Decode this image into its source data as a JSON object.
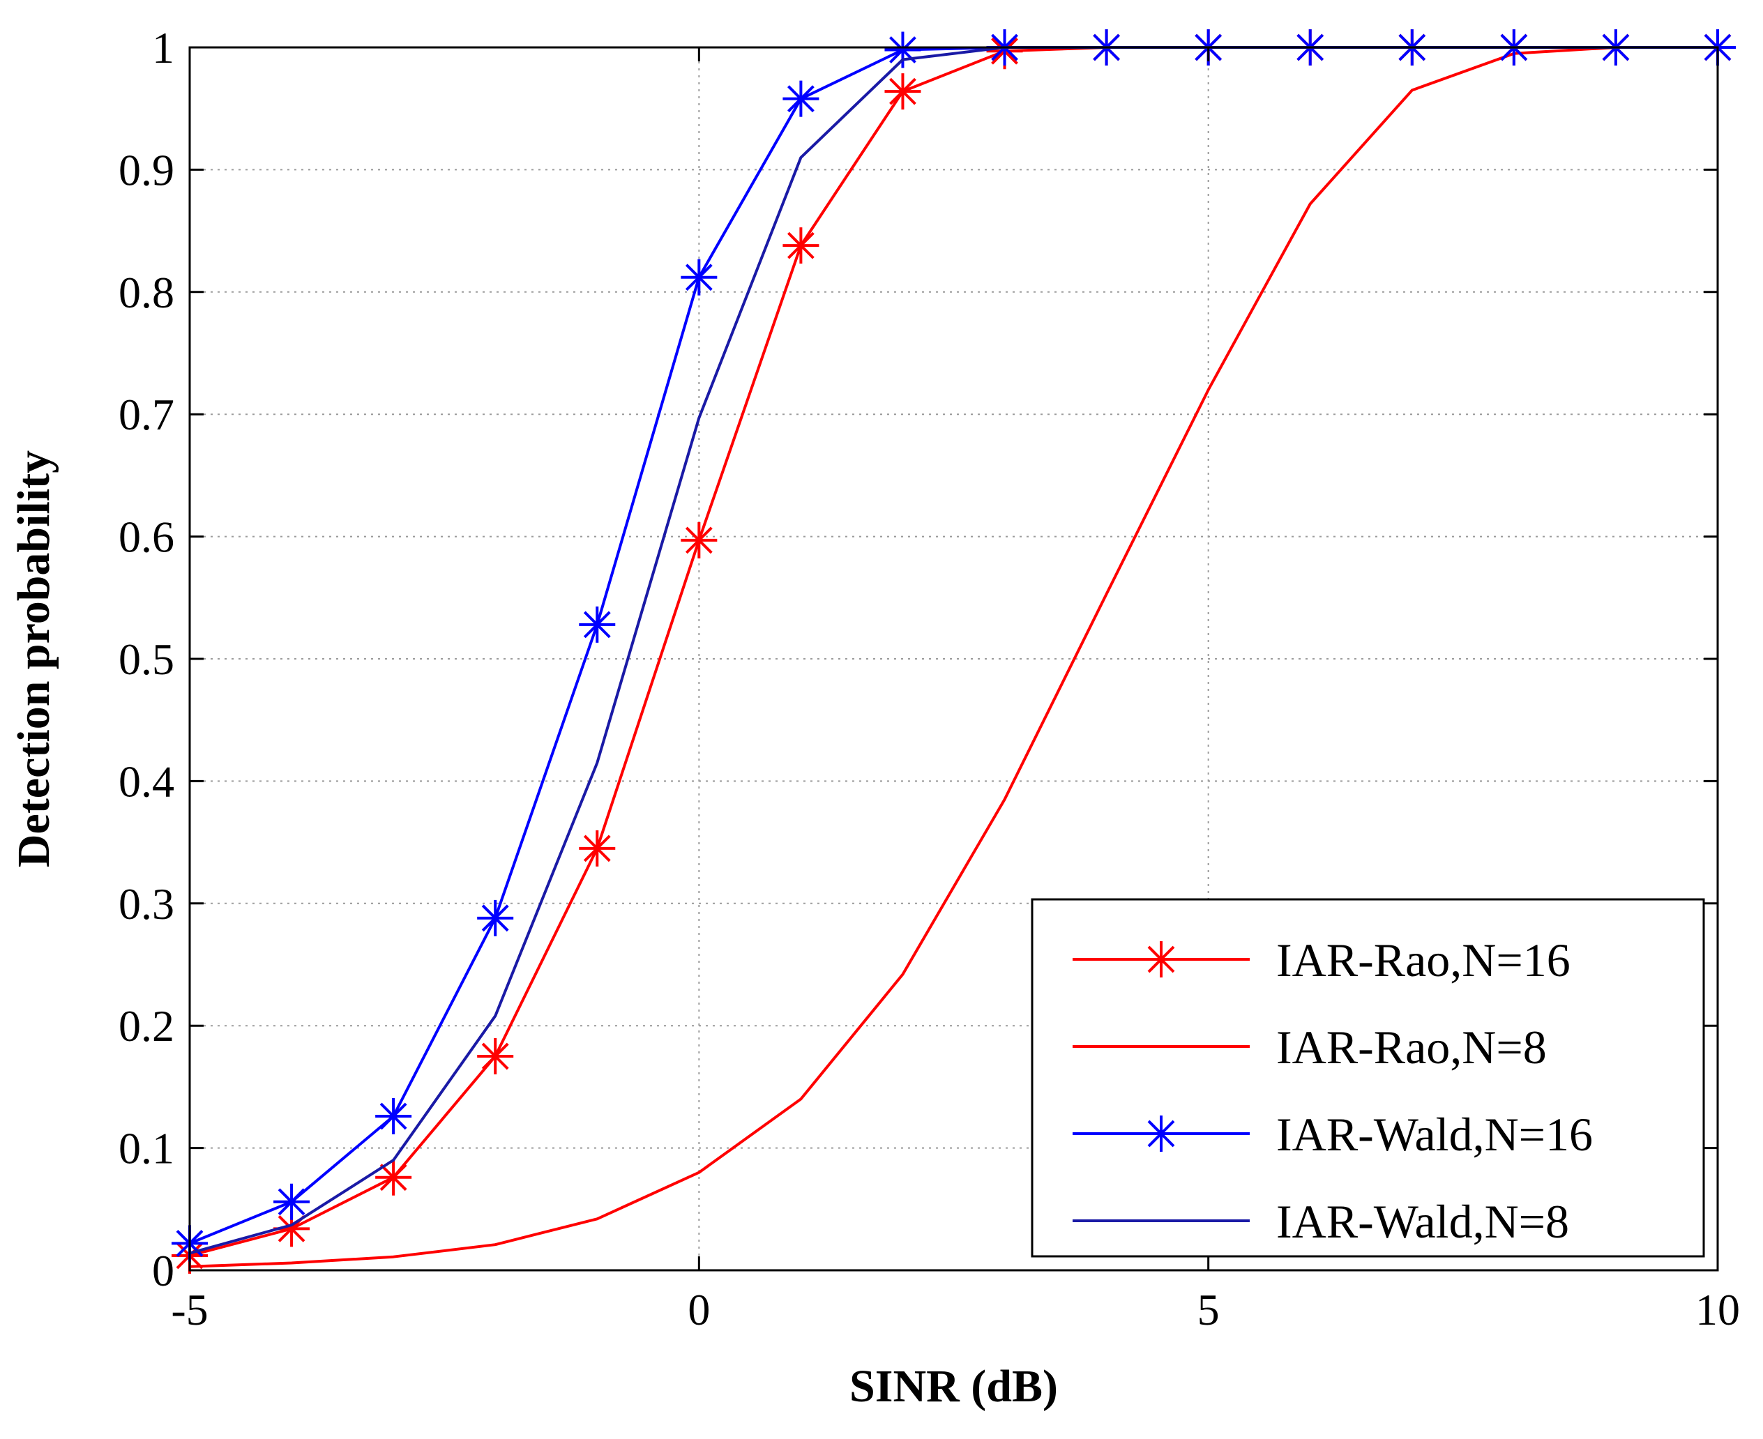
{
  "chart_data": {
    "type": "line",
    "title": "",
    "xlabel": "SINR (dB)",
    "ylabel": "Detection probability",
    "xlim": [
      -5,
      10
    ],
    "ylim": [
      0,
      1
    ],
    "grid": true,
    "x_ticks": [
      -5,
      0,
      5,
      10
    ],
    "x_tick_labels": [
      "-5",
      "0",
      "5",
      "10"
    ],
    "y_ticks": [
      0,
      0.1,
      0.2,
      0.3,
      0.4,
      0.5,
      0.6,
      0.7,
      0.8,
      0.9,
      1
    ],
    "y_tick_labels": [
      "0",
      "0.1",
      "0.2",
      "0.3",
      "0.4",
      "0.5",
      "0.6",
      "0.7",
      "0.8",
      "0.9",
      "1"
    ],
    "legend_position": "bottom-right",
    "x": [
      -5,
      -4,
      -3,
      -2,
      -1,
      0,
      1,
      2,
      3,
      4,
      5,
      6,
      7,
      8,
      9,
      10
    ],
    "series": [
      {
        "name": "IAR-Rao,N=16",
        "color": "#ff0000",
        "marker": "asterisk",
        "values": [
          0.012,
          0.034,
          0.076,
          0.175,
          0.345,
          0.597,
          0.838,
          0.964,
          0.997,
          1.0,
          1.0,
          1.0,
          1.0,
          1.0,
          1.0,
          1.0
        ]
      },
      {
        "name": "IAR-Rao,N=8",
        "color": "#ff0000",
        "marker": "none",
        "values": [
          0.003,
          0.006,
          0.011,
          0.021,
          0.042,
          0.08,
          0.14,
          0.242,
          0.385,
          0.553,
          0.72,
          0.872,
          0.965,
          0.995,
          1.0,
          1.0
        ]
      },
      {
        "name": "IAR-Wald,N=16",
        "color": "#0000ff",
        "marker": "asterisk",
        "values": [
          0.022,
          0.056,
          0.126,
          0.288,
          0.528,
          0.812,
          0.958,
          0.998,
          1.0,
          1.0,
          1.0,
          1.0,
          1.0,
          1.0,
          1.0,
          1.0
        ]
      },
      {
        "name": "IAR-Wald,N=8",
        "color": "#1a1aa6",
        "marker": "none",
        "values": [
          0.014,
          0.037,
          0.09,
          0.208,
          0.415,
          0.697,
          0.91,
          0.99,
          1.0,
          1.0,
          1.0,
          1.0,
          1.0,
          1.0,
          1.0,
          1.0
        ]
      }
    ]
  }
}
